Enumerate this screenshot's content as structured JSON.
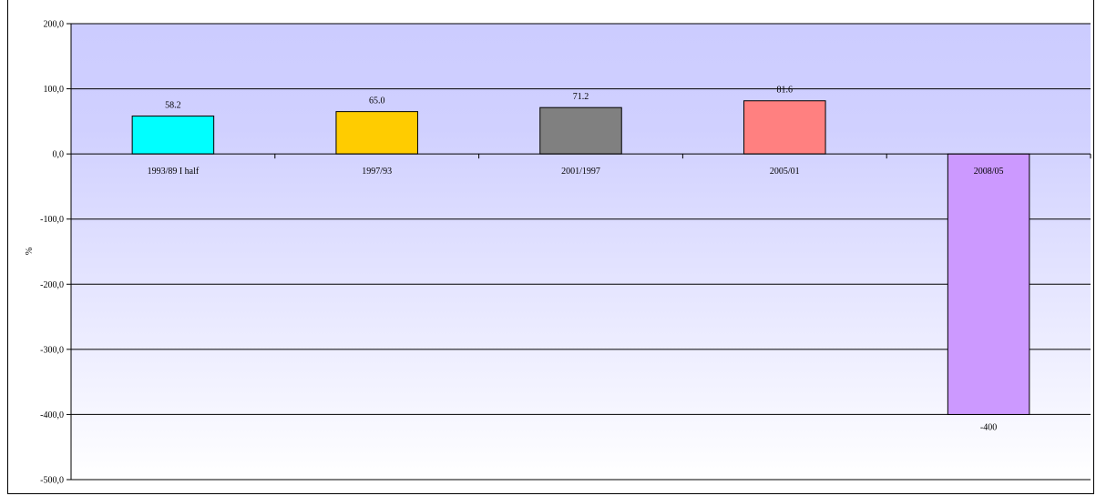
{
  "chart_data": {
    "type": "bar",
    "title": "",
    "xlabel": "",
    "ylabel": "%",
    "ylim": [
      -500,
      200
    ],
    "ytick_step": 100,
    "ytick_labels": [
      "200,0",
      "100,0",
      "0,0",
      "-100,0",
      "-200,0",
      "-300,0",
      "-400,0",
      "-500,0"
    ],
    "grid": true,
    "legend": "none",
    "categories": [
      "1993/89 I half",
      "1997/93",
      "2001/1997",
      "2005/01",
      "2008/05"
    ],
    "values": [
      58.2,
      65.0,
      71.2,
      81.6,
      -400
    ],
    "data_labels": [
      "58.2",
      "65.0",
      "71.2",
      "81.6",
      "-400"
    ],
    "colors": [
      "#00FFFF",
      "#FFCC00",
      "#808080",
      "#FF8080",
      "#CC99FF"
    ],
    "plot_background_top": "#CCCCFF",
    "plot_background_bottom": "#FFFFFF"
  }
}
